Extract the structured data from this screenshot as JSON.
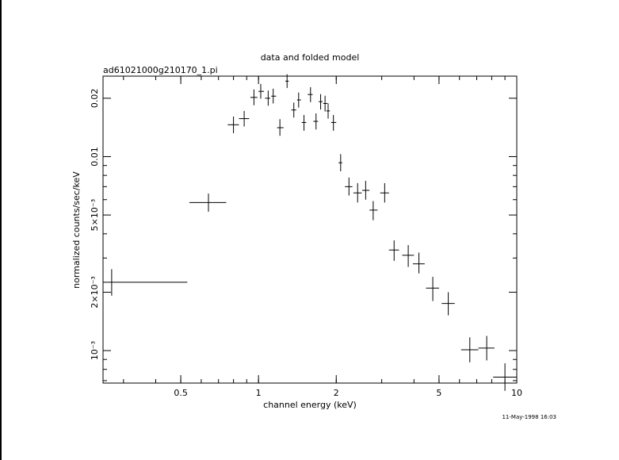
{
  "chart_data": {
    "type": "scatter",
    "title": "data and folded model",
    "subtitle": "ad61021000g210170_1.pi",
    "xlabel": "channel energy (keV)",
    "ylabel": "normalized counts/sec/keV",
    "timestamp": "11-May-1998 16:03",
    "x_scale": "log",
    "y_scale": "log",
    "xlim": [
      0.25,
      10
    ],
    "ylim": [
      0.00068,
      0.026
    ],
    "x_ticks": [
      {
        "value": 0.5,
        "label": "0.5"
      },
      {
        "value": 1,
        "label": "1"
      },
      {
        "value": 2,
        "label": "2"
      },
      {
        "value": 5,
        "label": "5"
      },
      {
        "value": 10,
        "label": "10"
      }
    ],
    "y_ticks": [
      {
        "value": 0.001,
        "label": "10⁻³"
      },
      {
        "value": 0.002,
        "label": "2×10⁻³"
      },
      {
        "value": 0.005,
        "label": "5×10⁻³"
      },
      {
        "value": 0.01,
        "label": "0.01"
      },
      {
        "value": 0.02,
        "label": "0.02"
      }
    ],
    "points": [
      {
        "x": 0.27,
        "xlo": 0.25,
        "xhi": 0.53,
        "y": 0.00225,
        "ylo": 0.00192,
        "yhi": 0.00263
      },
      {
        "x": 0.64,
        "xlo": 0.54,
        "xhi": 0.75,
        "y": 0.0058,
        "ylo": 0.0052,
        "yhi": 0.00645
      },
      {
        "x": 0.8,
        "xlo": 0.76,
        "xhi": 0.84,
        "y": 0.0146,
        "ylo": 0.0132,
        "yhi": 0.0161
      },
      {
        "x": 0.88,
        "xlo": 0.84,
        "xhi": 0.92,
        "y": 0.0157,
        "ylo": 0.0143,
        "yhi": 0.0172
      },
      {
        "x": 0.96,
        "xlo": 0.93,
        "xhi": 0.99,
        "y": 0.0202,
        "ylo": 0.0184,
        "yhi": 0.0222
      },
      {
        "x": 1.02,
        "xlo": 1.0,
        "xhi": 1.05,
        "y": 0.0217,
        "ylo": 0.0199,
        "yhi": 0.0237
      },
      {
        "x": 1.09,
        "xlo": 1.06,
        "xhi": 1.11,
        "y": 0.02,
        "ylo": 0.0183,
        "yhi": 0.0219
      },
      {
        "x": 1.14,
        "xlo": 1.12,
        "xhi": 1.17,
        "y": 0.0205,
        "ylo": 0.0188,
        "yhi": 0.0224
      },
      {
        "x": 1.21,
        "xlo": 1.18,
        "xhi": 1.25,
        "y": 0.0141,
        "ylo": 0.0128,
        "yhi": 0.0156
      },
      {
        "x": 1.29,
        "xlo": 1.27,
        "xhi": 1.31,
        "y": 0.0245,
        "ylo": 0.0226,
        "yhi": 0.0266
      },
      {
        "x": 1.37,
        "xlo": 1.34,
        "xhi": 1.4,
        "y": 0.0174,
        "ylo": 0.0159,
        "yhi": 0.019
      },
      {
        "x": 1.43,
        "xlo": 1.41,
        "xhi": 1.46,
        "y": 0.0196,
        "ylo": 0.0179,
        "yhi": 0.0214
      },
      {
        "x": 1.5,
        "xlo": 1.47,
        "xhi": 1.53,
        "y": 0.015,
        "ylo": 0.0136,
        "yhi": 0.0164
      },
      {
        "x": 1.59,
        "xlo": 1.55,
        "xhi": 1.62,
        "y": 0.0209,
        "ylo": 0.0191,
        "yhi": 0.0228
      },
      {
        "x": 1.67,
        "xlo": 1.63,
        "xhi": 1.7,
        "y": 0.0152,
        "ylo": 0.0138,
        "yhi": 0.0167
      },
      {
        "x": 1.74,
        "xlo": 1.71,
        "xhi": 1.77,
        "y": 0.0192,
        "ylo": 0.0175,
        "yhi": 0.021
      },
      {
        "x": 1.81,
        "xlo": 1.78,
        "xhi": 1.85,
        "y": 0.0188,
        "ylo": 0.0171,
        "yhi": 0.0206
      },
      {
        "x": 1.86,
        "xlo": 1.83,
        "xhi": 1.89,
        "y": 0.0172,
        "ylo": 0.0157,
        "yhi": 0.0188
      },
      {
        "x": 1.95,
        "xlo": 1.91,
        "xhi": 2.0,
        "y": 0.015,
        "ylo": 0.0136,
        "yhi": 0.0164
      },
      {
        "x": 2.08,
        "xlo": 2.04,
        "xhi": 2.11,
        "y": 0.0093,
        "ylo": 0.0084,
        "yhi": 0.0103
      },
      {
        "x": 2.24,
        "xlo": 2.16,
        "xhi": 2.31,
        "y": 0.007,
        "ylo": 0.0063,
        "yhi": 0.0078
      },
      {
        "x": 2.42,
        "xlo": 2.33,
        "xhi": 2.51,
        "y": 0.0065,
        "ylo": 0.0058,
        "yhi": 0.0073
      },
      {
        "x": 2.6,
        "xlo": 2.52,
        "xhi": 2.69,
        "y": 0.0067,
        "ylo": 0.006,
        "yhi": 0.0075
      },
      {
        "x": 2.78,
        "xlo": 2.69,
        "xhi": 2.89,
        "y": 0.0053,
        "ylo": 0.0047,
        "yhi": 0.0059
      },
      {
        "x": 3.08,
        "xlo": 2.96,
        "xhi": 3.2,
        "y": 0.0065,
        "ylo": 0.0058,
        "yhi": 0.0073
      },
      {
        "x": 3.35,
        "xlo": 3.2,
        "xhi": 3.5,
        "y": 0.0033,
        "ylo": 0.0029,
        "yhi": 0.0037
      },
      {
        "x": 3.8,
        "xlo": 3.6,
        "xhi": 4.0,
        "y": 0.0031,
        "ylo": 0.0027,
        "yhi": 0.0035
      },
      {
        "x": 4.18,
        "xlo": 3.96,
        "xhi": 4.4,
        "y": 0.0028,
        "ylo": 0.0025,
        "yhi": 0.0032
      },
      {
        "x": 4.73,
        "xlo": 4.45,
        "xhi": 5.0,
        "y": 0.0021,
        "ylo": 0.0018,
        "yhi": 0.0024
      },
      {
        "x": 5.43,
        "xlo": 5.12,
        "xhi": 5.75,
        "y": 0.00175,
        "ylo": 0.00152,
        "yhi": 0.002
      },
      {
        "x": 6.58,
        "xlo": 6.09,
        "xhi": 7.1,
        "y": 0.00101,
        "ylo": 0.00087,
        "yhi": 0.00117
      },
      {
        "x": 7.65,
        "xlo": 7.1,
        "xhi": 8.2,
        "y": 0.00103,
        "ylo": 0.00089,
        "yhi": 0.00119
      },
      {
        "x": 9.0,
        "xlo": 8.1,
        "xhi": 10.0,
        "y": 0.00073,
        "ylo": 0.00062,
        "yhi": 0.00086
      }
    ],
    "grid": false,
    "legend": "none"
  }
}
